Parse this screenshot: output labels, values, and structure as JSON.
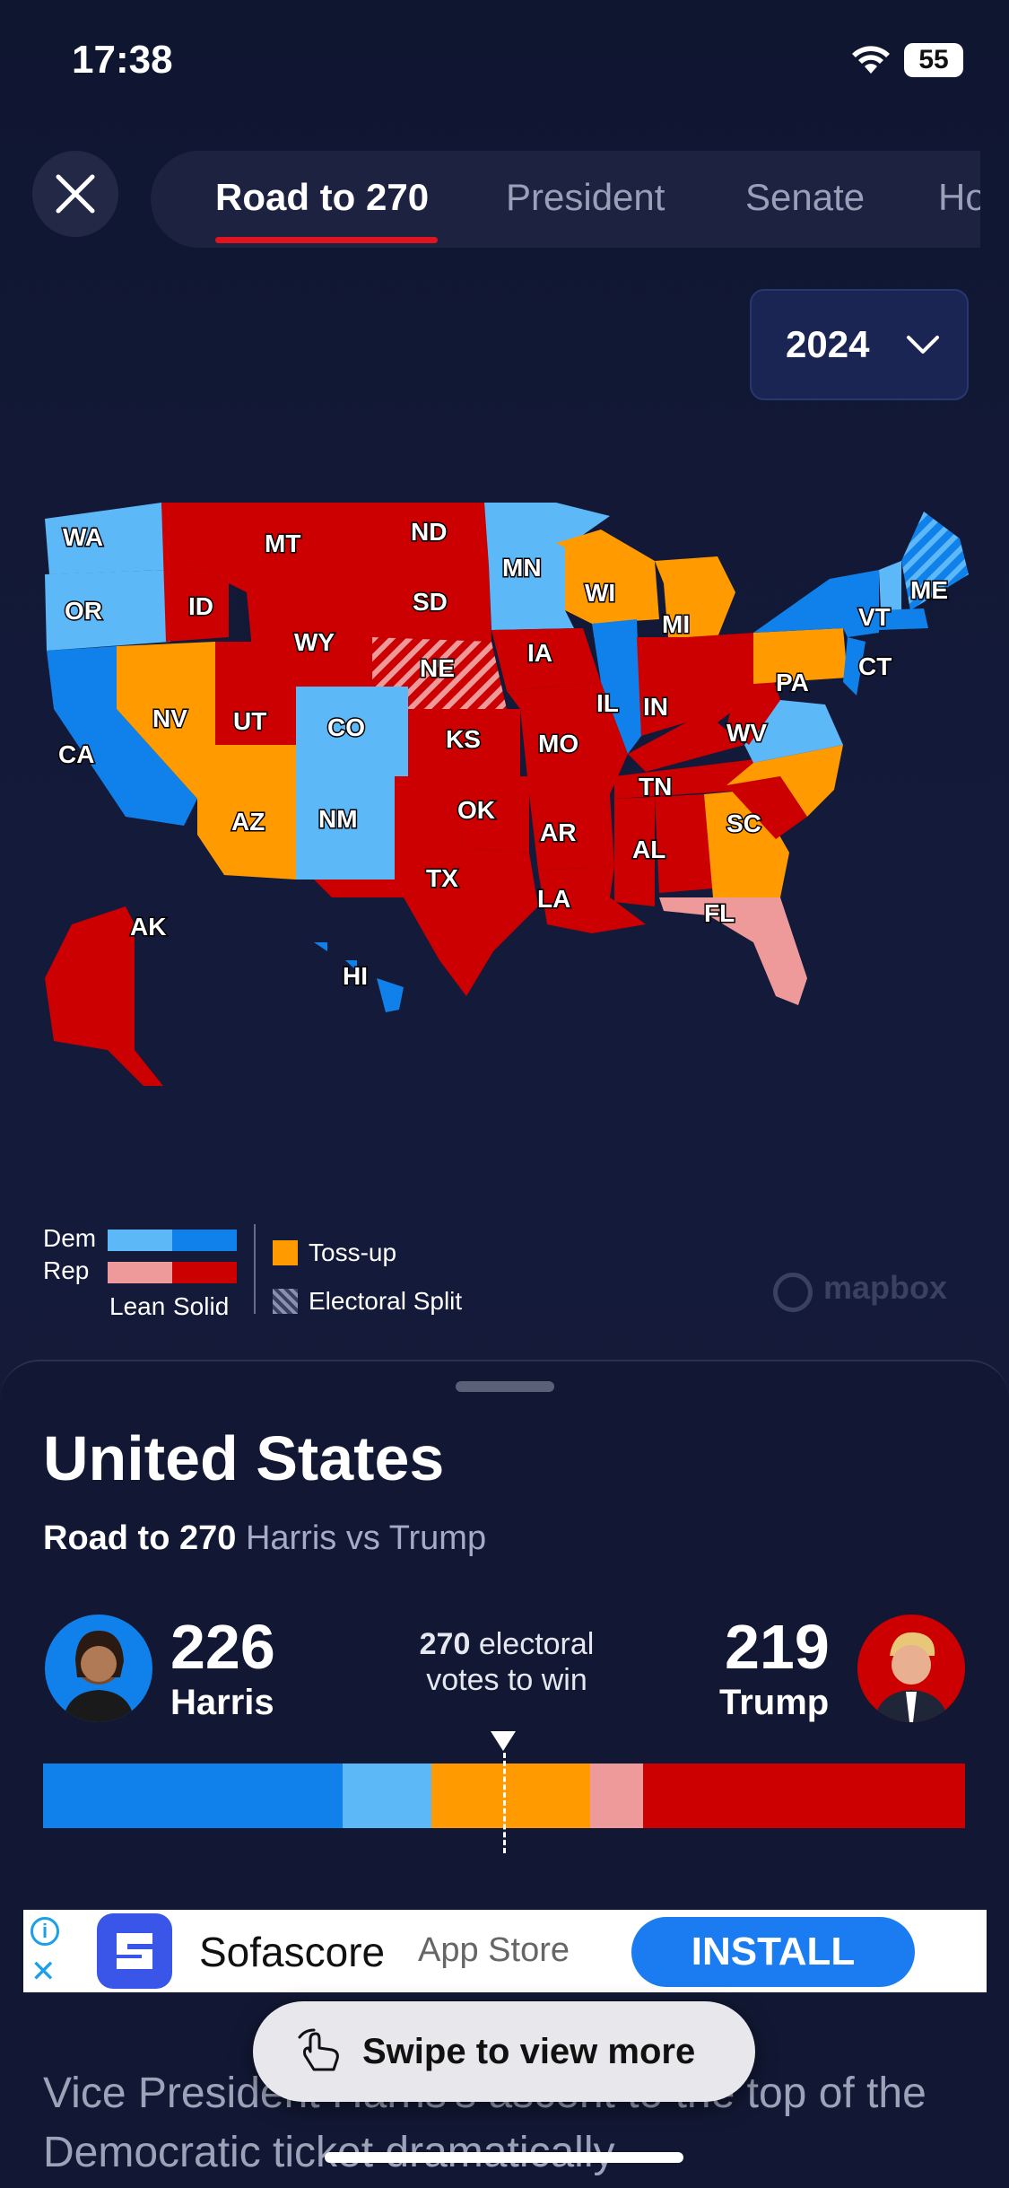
{
  "status": {
    "time": "17:38",
    "battery": "55"
  },
  "tabs": [
    "Road to 270",
    "President",
    "Senate",
    "Ho"
  ],
  "year": "2024",
  "map": {
    "states": [
      "WA",
      "OR",
      "CA",
      "MT",
      "ID",
      "NV",
      "UT",
      "AZ",
      "WY",
      "CO",
      "NM",
      "ND",
      "SD",
      "NE",
      "KS",
      "OK",
      "TX",
      "MN",
      "IA",
      "MO",
      "AR",
      "LA",
      "WI",
      "IL",
      "MI",
      "IN",
      "TN",
      "AL",
      "PA",
      "WV",
      "SC",
      "FL",
      "VT",
      "ME",
      "CT",
      "AK",
      "HI"
    ],
    "colors": {
      "dem_solid": "#1081ea",
      "dem_lean": "#5db8f8",
      "rep_solid": "#cc0000",
      "rep_lean": "#ef9a9a",
      "tossup": "#ff9a00"
    }
  },
  "legend": {
    "dem": "Dem",
    "rep": "Rep",
    "lean": "Lean",
    "solid": "Solid",
    "tossup": "Toss-up",
    "split": "Electoral Split",
    "attribution": "mapbox"
  },
  "sheet": {
    "title": "United States",
    "subtitle_bold": "Road to 270",
    "subtitle_rest": " Harris vs Trump",
    "harris_votes": "226",
    "harris_name": "Harris",
    "trump_votes": "219",
    "trump_name": "Trump",
    "win_num": "270",
    "win_text1": " electoral",
    "win_text2": "votes to win",
    "bar_segments": [
      {
        "label": "dem_solid",
        "value": 0.325
      },
      {
        "label": "dem_lean",
        "value": 0.096
      },
      {
        "label": "tossup",
        "value": 0.172
      },
      {
        "label": "rep_lean",
        "value": 0.058
      },
      {
        "label": "rep_solid",
        "value": 0.349
      }
    ]
  },
  "ad": {
    "name": "Sofascore",
    "store": "App Store",
    "install": "INSTALL"
  },
  "article": {
    "text": "Vice President Harris's ascent to the top of the Democratic ticket dramatically"
  },
  "swipe": "Swipe to view more"
}
